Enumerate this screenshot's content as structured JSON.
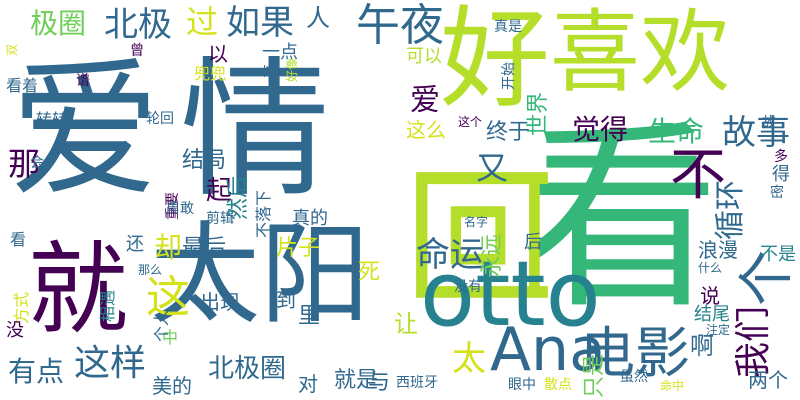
{
  "word_cloud": {
    "colors": {
      "dark_purple": "#440154",
      "blue": "#31688e",
      "teal": "#26828e",
      "green": "#35b779",
      "light_green": "#6ece58",
      "yellow_green": "#b5de2b",
      "yellow": "#d5e21a"
    },
    "words": [
      {
        "id": "w-aiqing-ai",
        "text": "爱",
        "color": "#31688e"
      },
      {
        "id": "w-aiqing-qing",
        "text": "情",
        "color": "#31688e"
      },
      {
        "id": "w-kan",
        "text": "看",
        "color": "#35b779"
      },
      {
        "id": "w-hao",
        "text": "好",
        "color": "#b5de2b"
      },
      {
        "id": "w-xihuan",
        "text": "喜欢",
        "color": "#b5de2b"
      },
      {
        "id": "w-jiu",
        "text": "就",
        "color": "#440154"
      },
      {
        "id": "w-taiyang",
        "text": "太阳",
        "color": "#31688e"
      },
      {
        "id": "w-hui",
        "text": "回",
        "color": "#b5de2b"
      },
      {
        "id": "w-otto",
        "text": "otto",
        "color": "#26828e"
      },
      {
        "id": "w-ana",
        "text": "Ana",
        "color": "#31688e"
      },
      {
        "id": "w-dianying",
        "text": "电影",
        "color": "#31688e"
      },
      {
        "id": "w-bu",
        "text": "不",
        "color": "#440154"
      },
      {
        "id": "w-ge-large",
        "text": "个",
        "color": "#31688e"
      },
      {
        "id": "w-wuye",
        "text": "午夜",
        "color": "#31688e"
      },
      {
        "id": "w-ruguo",
        "text": "如果",
        "color": "#31688e"
      },
      {
        "id": "w-ren",
        "text": "人",
        "color": "#31688e"
      },
      {
        "id": "w-beiji",
        "text": "北极",
        "color": "#31688e"
      },
      {
        "id": "w-jiquan",
        "text": "极圈",
        "color": "#6ece58"
      },
      {
        "id": "w-guo",
        "text": "过",
        "color": "#d5e21a"
      },
      {
        "id": "w-ai-small",
        "text": "爱",
        "color": "#440154"
      },
      {
        "id": "w-juede",
        "text": "觉得",
        "color": "#440154"
      },
      {
        "id": "w-shengming",
        "text": "生命",
        "color": "#35b779"
      },
      {
        "id": "w-gushi",
        "text": "故事",
        "color": "#31688e"
      },
      {
        "id": "w-you",
        "text": "又",
        "color": "#31688e"
      },
      {
        "id": "w-zhe-large",
        "text": "这",
        "color": "#d5e21a"
      },
      {
        "id": "w-mingyun",
        "text": "命运",
        "color": "#31688e"
      },
      {
        "id": "w-xunhuan",
        "text": "循环",
        "color": "#31688e"
      },
      {
        "id": "w-women",
        "text": "我们",
        "color": "#440154"
      },
      {
        "id": "w-zheyang",
        "text": "这样",
        "color": "#31688e"
      },
      {
        "id": "w-youdian",
        "text": "有点",
        "color": "#31688e"
      },
      {
        "id": "w-tai",
        "text": "太",
        "color": "#d5e21a"
      },
      {
        "id": "w-beijiquan",
        "text": "北极圈",
        "color": "#31688e"
      },
      {
        "id": "w-jiushi",
        "text": "就是",
        "color": "#31688e"
      },
      {
        "id": "w-na",
        "text": "那",
        "color": "#440154"
      },
      {
        "id": "w-qi",
        "text": "起",
        "color": "#440154"
      },
      {
        "id": "w-que",
        "text": "却",
        "color": "#d5e21a"
      },
      {
        "id": "w-zuihou",
        "text": "最后",
        "color": "#31688e"
      },
      {
        "id": "w-piànzi",
        "text": "片子",
        "color": "#d5e21a"
      },
      {
        "id": "w-ranhou",
        "text": "然后",
        "color": "#26828e"
      },
      {
        "id": "w-jieju",
        "text": "结局",
        "color": "#31688e"
      },
      {
        "id": "w-zhongyu",
        "text": "终于",
        "color": "#31688e"
      },
      {
        "id": "w-shijie",
        "text": "世界",
        "color": "#35b779"
      },
      {
        "id": "w-zheme",
        "text": "这么",
        "color": "#d5e21a"
      },
      {
        "id": "w-yongyuan",
        "text": "永远",
        "color": "#6ece58"
      },
      {
        "id": "w-langman",
        "text": "浪漫",
        "color": "#31688e"
      },
      {
        "id": "w-bushi",
        "text": "不是",
        "color": "#26828e"
      },
      {
        "id": "w-shuo",
        "text": "说",
        "color": "#440154"
      },
      {
        "id": "w-jiewei",
        "text": "结尾",
        "color": "#26828e"
      },
      {
        "id": "w-a",
        "text": "啊",
        "color": "#31688e"
      },
      {
        "id": "w-lianggeren",
        "text": "两个",
        "color": "#31688e"
      },
      {
        "id": "w-zhishi",
        "text": "只是",
        "color": "#6ece58"
      },
      {
        "id": "w-rang",
        "text": "让",
        "color": "#b5de2b"
      },
      {
        "id": "w-yu",
        "text": "与",
        "color": "#31688e"
      },
      {
        "id": "w-dui",
        "text": "对",
        "color": "#31688e"
      },
      {
        "id": "w-meide",
        "text": "美的",
        "color": "#31688e"
      },
      {
        "id": "w-li",
        "text": "里",
        "color": "#31688e"
      },
      {
        "id": "w-dao",
        "text": "到",
        "color": "#31688e"
      },
      {
        "id": "w-chuxian",
        "text": "出现",
        "color": "#31688e"
      },
      {
        "id": "w-si",
        "text": "死",
        "color": "#d5e21a"
      },
      {
        "id": "w-hou",
        "text": "后",
        "color": "#31688e"
      },
      {
        "id": "w-zhende",
        "text": "真的",
        "color": "#31688e"
      },
      {
        "id": "w-haishi",
        "text": "还",
        "color": "#31688e"
      },
      {
        "id": "w-yi",
        "text": "以",
        "color": "#440154"
      },
      {
        "id": "w-yidian",
        "text": "一点",
        "color": "#31688e"
      },
      {
        "id": "w-keyi",
        "text": "可以",
        "color": "#b5de2b"
      },
      {
        "id": "w-zhenshi",
        "text": "真是",
        "color": "#31688e"
      },
      {
        "id": "w-kaishi",
        "text": "开始",
        "color": "#31688e"
      },
      {
        "id": "w-haoxiang",
        "text": "好像",
        "color": "#b5de2b"
      },
      {
        "id": "w-guaiyi",
        "text": "一直",
        "color": "#31688e"
      },
      {
        "id": "w-douhui",
        "text": "兜兜",
        "color": "#d5e21a"
      },
      {
        "id": "w-kanzhe",
        "text": "看着",
        "color": "#31688e"
      },
      {
        "id": "w-pu",
        "text": "谱",
        "color": "#440154"
      },
      {
        "id": "w-zhuanzhuan",
        "text": "转转",
        "color": "#31688e"
      },
      {
        "id": "w-lunhui",
        "text": "轮回",
        "color": "#31688e"
      },
      {
        "id": "w-zhege",
        "text": "这个",
        "color": "#440154"
      },
      {
        "id": "w-hui-small",
        "text": "会",
        "color": "#31688e"
      },
      {
        "id": "w-zhongyao",
        "text": "重要",
        "color": "#440154"
      },
      {
        "id": "w-yonggan",
        "text": "勇敢",
        "color": "#31688e"
      },
      {
        "id": "w-jianji",
        "text": "剪辑",
        "color": "#31688e"
      },
      {
        "id": "w-buluoxia",
        "text": "不落下",
        "color": "#31688e"
      },
      {
        "id": "w-mingzi",
        "text": "名字",
        "color": "#31688e"
      },
      {
        "id": "w-duo",
        "text": "多",
        "color": "#440154"
      },
      {
        "id": "w-de",
        "text": "得",
        "color": "#31688e"
      },
      {
        "id": "w-mi",
        "text": "密",
        "color": "#31688e"
      },
      {
        "id": "w-kan-small",
        "text": "看",
        "color": "#31688e"
      },
      {
        "id": "w-name",
        "text": "那么",
        "color": "#31688e"
      },
      {
        "id": "w-fangshi",
        "text": "方式",
        "color": "#d5e21a"
      },
      {
        "id": "w-xiangyu",
        "text": "相遇",
        "color": "#26828e"
      },
      {
        "id": "w-mei",
        "text": "没",
        "color": "#440154"
      },
      {
        "id": "w-zhong",
        "text": "中",
        "color": "#6ece58"
      },
      {
        "id": "w-geren",
        "text": "个人",
        "color": "#31688e"
      },
      {
        "id": "w-meiyou",
        "text": "没有",
        "color": "#31688e"
      },
      {
        "id": "w-shenme",
        "text": "什么",
        "color": "#31688e"
      },
      {
        "id": "w-zhuding",
        "text": "注定",
        "color": "#31688e"
      },
      {
        "id": "w-xibanya",
        "text": "西班牙",
        "color": "#31688e"
      },
      {
        "id": "w-yanzhong",
        "text": "眼中",
        "color": "#31688e"
      },
      {
        "id": "w-sandian",
        "text": "散点",
        "color": "#d5e21a"
      },
      {
        "id": "w-suiran",
        "text": "虽然",
        "color": "#31688e"
      },
      {
        "id": "w-mingzhong",
        "text": "命中",
        "color": "#d5e21a"
      },
      {
        "id": "w-shuang",
        "text": "双",
        "color": "#d5e21a"
      },
      {
        "id": "w-ceng",
        "text": "曾",
        "color": "#440154"
      },
      {
        "id": "w-gu",
        "text": "故",
        "color": "#31688e"
      }
    ]
  }
}
